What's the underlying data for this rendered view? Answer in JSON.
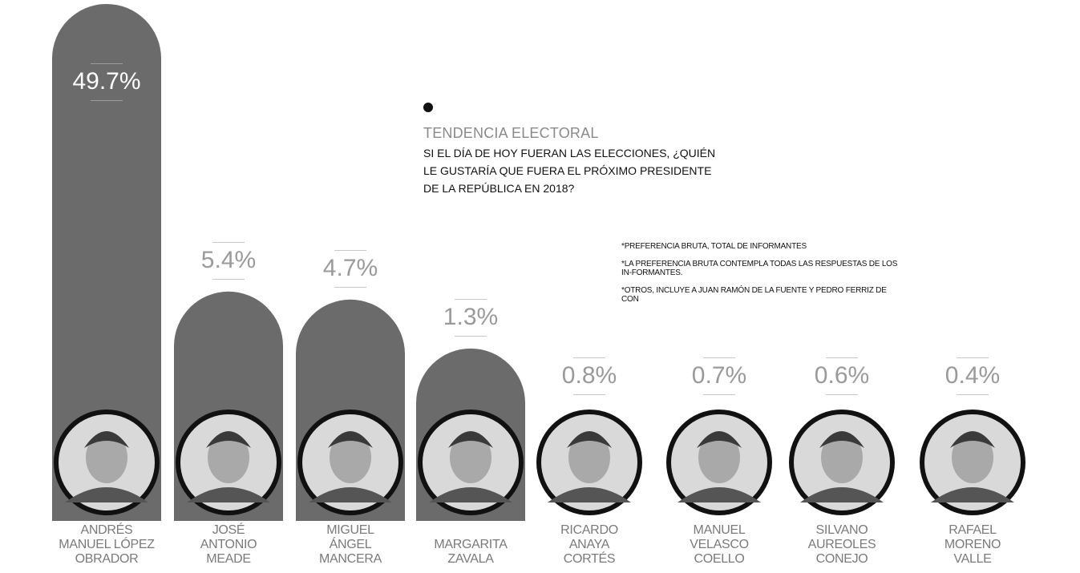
{
  "header": {
    "kicker": "TENDENCIA ELECTORAL",
    "question": "SI EL DÍA DE HOY FUERAN LAS ELECCIONES, ¿QUIÉN LE GUSTARÍA QUE FUERA EL PRÓXIMO PRESIDENTE DE LA REPÚBLICA EN 2018?"
  },
  "notes": [
    "*PREFERENCIA BRUTA, TOTAL DE INFORMANTES",
    "*LA PREFERENCIA BRUTA CONTEMPLA TODAS LAS RESPUESTAS DE LOS IN-FORMANTES.",
    "*OTROS, INCLUYE A JUAN RAMÓN DE LA FUENTE Y PEDRO FERRIZ DE CON"
  ],
  "colors": {
    "bar": "#6b6b6c",
    "photo_ring": "#111111",
    "label": "#9a9a9a",
    "name": "#7a7a7a"
  },
  "chart_data": {
    "type": "bar",
    "title": "TENDENCIA ELECTORAL",
    "unit": "%",
    "categories": [
      "ANDRÉS\nMANUEL LÓPEZ\nOBRADOR",
      "JOSÉ\nANTONIO\nMEADE",
      "MIGUEL\nÁNGEL\nMANCERA",
      "MARGARITA\nZAVALA",
      "RICARDO\nANAYA\nCORTÉS",
      "MANUEL\nVELASCO\nCOELLO",
      "SILVANO\nAUREOLES\nCONEJO",
      "RAFAEL\nMORENO\nVALLE"
    ],
    "values": [
      49.7,
      5.4,
      4.7,
      1.3,
      0.8,
      0.7,
      0.6,
      0.4
    ],
    "labels": [
      "49.7%",
      "5.4%",
      "4.7%",
      "1.3%",
      "0.8%",
      "0.7%",
      "0.6%",
      "0.4%"
    ],
    "xlabel": "",
    "ylabel": "",
    "grid": false,
    "legend": "none"
  }
}
